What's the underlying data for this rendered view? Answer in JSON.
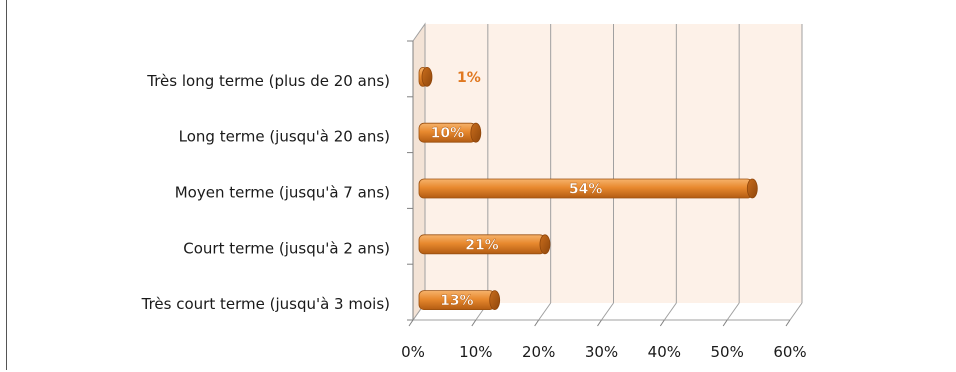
{
  "chart_data": {
    "type": "bar",
    "orientation": "horizontal",
    "categories": [
      "Très long terme (plus de 20 ans)",
      "Long terme (jusqu'à 20 ans)",
      "Moyen terme (jusqu'à 7 ans)",
      "Court terme (jusqu'à 2 ans)",
      "Très court terme (jusqu'à 3 mois)"
    ],
    "values": [
      1,
      10,
      54,
      21,
      13
    ],
    "value_labels": [
      "1%",
      "10%",
      "54%",
      "21%",
      "13%"
    ],
    "x_ticks": [
      "0%",
      "10%",
      "20%",
      "30%",
      "40%",
      "50%",
      "60%"
    ],
    "xlim": [
      0,
      60
    ],
    "grid": true,
    "legend": "none",
    "colors": {
      "bar": "#e8892e",
      "bar_dark": "#b35c12",
      "bar_light": "#f6b36c",
      "plot_bg": "#fdf1e8",
      "grid": "#a0a0a0",
      "outside_label": "#e07820"
    }
  }
}
